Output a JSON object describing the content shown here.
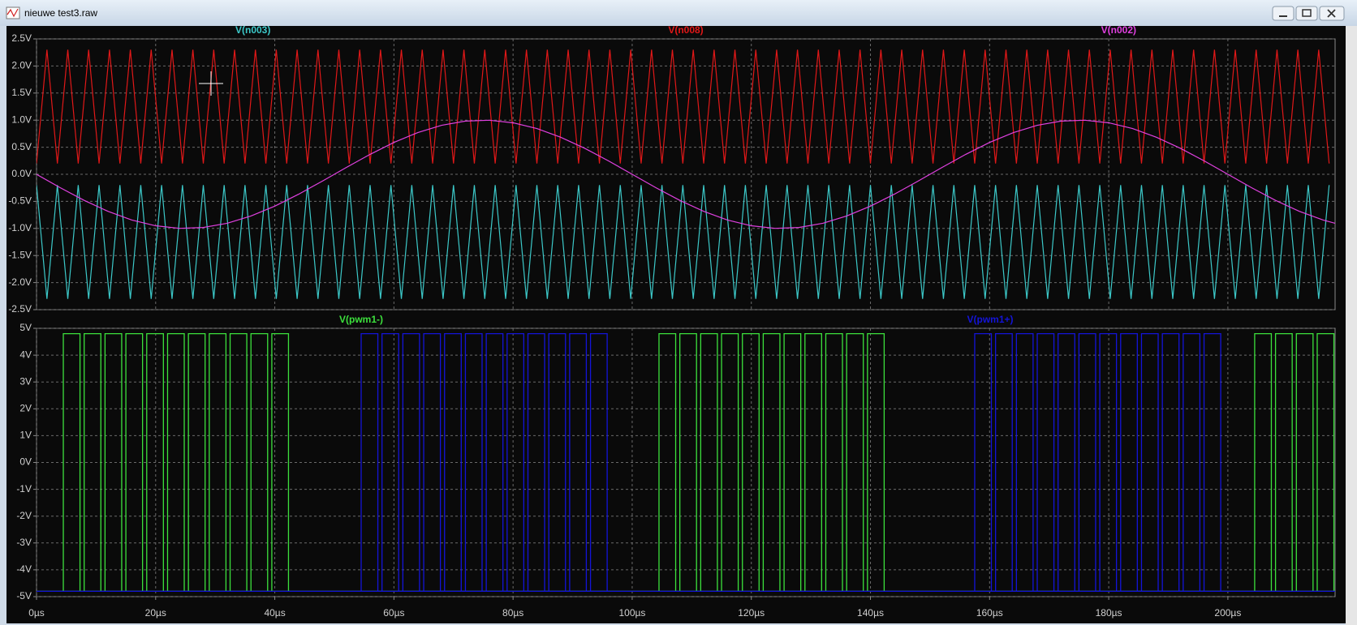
{
  "window": {
    "title": "nieuwe test3.raw"
  },
  "chart_data": [
    {
      "type": "line",
      "xlim": [
        0,
        218
      ],
      "ylim": [
        -2.5,
        2.5
      ],
      "yticks": [
        {
          "value": -2.5,
          "label": "-2.5V"
        },
        {
          "value": -2,
          "label": "-2.0V"
        },
        {
          "value": -1.5,
          "label": "-1.5V"
        },
        {
          "value": -1,
          "label": "-1.0V"
        },
        {
          "value": -0.5,
          "label": "-0.5V"
        },
        {
          "value": 0,
          "label": "0.0V"
        },
        {
          "value": 0.5,
          "label": "0.5V"
        },
        {
          "value": 1,
          "label": "1.0V"
        },
        {
          "value": 1.5,
          "label": "1.5V"
        },
        {
          "value": 2,
          "label": "2.0V"
        },
        {
          "value": 2.5,
          "label": "2.5V"
        }
      ],
      "grid": true,
      "x": [
        0,
        1.75,
        3.5,
        5.25,
        7,
        8.75,
        10.5,
        12.25,
        14,
        15.75,
        17.5,
        19.25,
        21,
        22.75,
        24.5,
        26.25,
        28,
        29.75,
        31.5,
        33.25,
        35,
        36.75,
        38.5,
        40.25,
        42,
        43.75,
        45.5,
        47.25,
        49,
        50.75,
        52.5,
        54.25,
        56,
        57.75,
        59.5,
        61.25,
        63,
        64.75,
        66.5,
        68.25,
        70,
        71.75,
        73.5,
        75.25,
        77,
        78.75,
        80.5,
        82.25,
        84,
        85.75,
        87.5,
        89.25,
        91,
        92.75,
        94.5,
        96.25,
        98,
        99.75,
        101.5,
        103.25,
        105,
        106.75,
        108.5,
        110.25,
        112,
        113.75,
        115.5,
        117.25,
        119,
        120.75,
        122.5,
        124.25,
        126,
        127.75,
        129.5,
        131.25,
        133,
        134.75,
        136.5,
        138.25,
        140,
        141.75,
        143.5,
        145.25,
        147,
        148.75,
        150.5,
        152.25,
        154,
        155.75,
        157.5,
        159.25,
        161,
        162.75,
        164.5,
        166.25,
        168,
        169.75,
        171.5,
        173.25,
        175,
        176.75,
        178.5,
        180.25,
        182,
        183.75,
        185.5,
        187.25,
        189,
        190.75,
        192.5,
        194.25,
        196,
        197.75,
        199.5,
        201.25,
        203,
        204.75,
        206.5,
        208.25,
        210,
        211.75,
        213.5,
        215.25,
        217
      ],
      "series": [
        {
          "name": "V(n003)",
          "color": "#3cc8c8",
          "values": [
            -0.2,
            -2.3,
            -0.2,
            -2.3,
            -0.2,
            -2.3,
            -0.2,
            -2.3,
            -0.2,
            -2.3,
            -0.2,
            -2.3,
            -0.2,
            -2.3,
            -0.2,
            -2.3,
            -0.2,
            -2.3,
            -0.2,
            -2.3,
            -0.2,
            -2.3,
            -0.2,
            -2.3,
            -0.2,
            -2.3,
            -0.2,
            -2.3,
            -0.2,
            -2.3,
            -0.2,
            -2.3,
            -0.2,
            -2.3,
            -0.2,
            -2.3,
            -0.2,
            -2.3,
            -0.2,
            -2.3,
            -0.2,
            -2.3,
            -0.2,
            -2.3,
            -0.2,
            -2.3,
            -0.2,
            -2.3,
            -0.2,
            -2.3,
            -0.2,
            -2.3,
            -0.2,
            -2.3,
            -0.2,
            -2.3,
            -0.2,
            -2.3,
            -0.2,
            -2.3,
            -0.2,
            -2.3,
            -0.2,
            -2.3,
            -0.2,
            -2.3,
            -0.2,
            -2.3,
            -0.2,
            -2.3,
            -0.2,
            -2.3,
            -0.2,
            -2.3,
            -0.2,
            -2.3,
            -0.2,
            -2.3,
            -0.2,
            -2.3,
            -0.2,
            -2.3,
            -0.2,
            -2.3,
            -0.2,
            -2.3,
            -0.2,
            -2.3,
            -0.2,
            -2.3,
            -0.2,
            -2.3,
            -0.2,
            -2.3,
            -0.2,
            -2.3,
            -0.2,
            -2.3,
            -0.2,
            -2.3,
            -0.2,
            -2.3,
            -0.2,
            -2.3,
            -0.2,
            -2.3,
            -0.2,
            -2.3,
            -0.2,
            -2.3,
            -0.2,
            -2.3,
            -0.2,
            -2.3,
            -0.2,
            -2.3,
            -0.2,
            -2.3,
            -0.2,
            -2.3,
            -0.2,
            -2.3,
            -0.2,
            -2.3,
            -0.2
          ]
        },
        {
          "name": "V(n008)",
          "color": "#e01818",
          "values": [
            0.2,
            2.3,
            0.2,
            2.3,
            0.2,
            2.3,
            0.2,
            2.3,
            0.2,
            2.3,
            0.2,
            2.3,
            0.2,
            2.3,
            0.2,
            2.3,
            0.2,
            2.3,
            0.2,
            2.3,
            0.2,
            2.3,
            0.2,
            2.3,
            0.2,
            2.3,
            0.2,
            2.3,
            0.2,
            2.3,
            0.2,
            2.3,
            0.2,
            2.3,
            0.2,
            2.3,
            0.2,
            2.3,
            0.2,
            2.3,
            0.2,
            2.3,
            0.2,
            2.3,
            0.2,
            2.3,
            0.2,
            2.3,
            0.2,
            2.3,
            0.2,
            2.3,
            0.2,
            2.3,
            0.2,
            2.3,
            0.2,
            2.3,
            0.2,
            2.3,
            0.2,
            2.3,
            0.2,
            2.3,
            0.2,
            2.3,
            0.2,
            2.3,
            0.2,
            2.3,
            0.2,
            2.3,
            0.2,
            2.3,
            0.2,
            2.3,
            0.2,
            2.3,
            0.2,
            2.3,
            0.2,
            2.3,
            0.2,
            2.3,
            0.2,
            2.3,
            0.2,
            2.3,
            0.2,
            2.3,
            0.2,
            2.3,
            0.2,
            2.3,
            0.2,
            2.3,
            0.2,
            2.3,
            0.2,
            2.3,
            0.2,
            2.3,
            0.2,
            2.3,
            0.2,
            2.3,
            0.2,
            2.3,
            0.2,
            2.3,
            0.2,
            2.3,
            0.2,
            2.3,
            0.2,
            2.3,
            0.2,
            2.3,
            0.2,
            2.3,
            0.2,
            2.3,
            0.2,
            2.3,
            0.2
          ]
        },
        {
          "name": "V(n002)",
          "color": "#e040e0",
          "x": [
            0,
            4,
            8,
            12,
            16,
            20,
            24,
            28,
            32,
            36,
            40,
            44,
            48,
            52,
            56,
            60,
            64,
            68,
            72,
            76,
            80,
            84,
            88,
            92,
            96,
            100,
            104,
            108,
            112,
            116,
            120,
            124,
            128,
            132,
            136,
            140,
            144,
            148,
            152,
            156,
            160,
            164,
            168,
            172,
            176,
            180,
            184,
            188,
            192,
            196,
            200,
            204,
            208,
            212,
            216,
            218
          ],
          "values": [
            0,
            -0.2487,
            -0.4818,
            -0.6845,
            -0.8443,
            -0.9511,
            -0.998,
            -0.9823,
            -0.9048,
            -0.7705,
            -0.5878,
            -0.3681,
            -0.1253,
            0.1253,
            0.3681,
            0.5878,
            0.7705,
            0.9048,
            0.9823,
            0.998,
            0.9511,
            0.8443,
            0.6845,
            0.4818,
            0.2487,
            0,
            -0.2487,
            -0.4818,
            -0.6845,
            -0.8443,
            -0.9511,
            -0.998,
            -0.9823,
            -0.9048,
            -0.7705,
            -0.5878,
            -0.3681,
            -0.1253,
            0.1253,
            0.3681,
            0.5878,
            0.7705,
            0.9048,
            0.9823,
            0.998,
            0.9511,
            0.8443,
            0.6845,
            0.4818,
            0.2487,
            0,
            -0.2487,
            -0.4818,
            -0.6845,
            -0.8443,
            -0.9048
          ]
        }
      ]
    },
    {
      "type": "line",
      "xlim": [
        0,
        218
      ],
      "ylim": [
        -5,
        5
      ],
      "xticks": [
        {
          "value": 0,
          "label": "0µs"
        },
        {
          "value": 20,
          "label": "20µs"
        },
        {
          "value": 40,
          "label": "40µs"
        },
        {
          "value": 60,
          "label": "60µs"
        },
        {
          "value": 80,
          "label": "80µs"
        },
        {
          "value": 100,
          "label": "100µs"
        },
        {
          "value": 120,
          "label": "120µs"
        },
        {
          "value": 140,
          "label": "140µs"
        },
        {
          "value": 160,
          "label": "160µs"
        },
        {
          "value": 180,
          "label": "180µs"
        },
        {
          "value": 200,
          "label": "200µs"
        }
      ],
      "yticks": [
        {
          "value": -5,
          "label": "-5V"
        },
        {
          "value": -4,
          "label": "-4V"
        },
        {
          "value": -3,
          "label": "-3V"
        },
        {
          "value": -2,
          "label": "-2V"
        },
        {
          "value": -1,
          "label": "-1V"
        },
        {
          "value": 0,
          "label": "0V"
        },
        {
          "value": 1,
          "label": "1V"
        },
        {
          "value": 2,
          "label": "2V"
        },
        {
          "value": 3,
          "label": "3V"
        },
        {
          "value": 4,
          "label": "4V"
        },
        {
          "value": 5,
          "label": "5V"
        }
      ],
      "grid": true,
      "series": [
        {
          "name": "V(pwm1-)",
          "color": "#3ce03c",
          "high": 4.8,
          "low": -4.8,
          "pulses": [
            [
              4.5,
              7.3
            ],
            [
              8,
              10.8
            ],
            [
              11.5,
              14.3
            ],
            [
              15,
              17.8
            ],
            [
              18.5,
              21.3
            ],
            [
              22,
              24.8
            ],
            [
              25.5,
              28.3
            ],
            [
              29,
              31.8
            ],
            [
              32.5,
              35.3
            ],
            [
              36,
              38.8
            ],
            [
              39.5,
              42.3
            ],
            [
              104.5,
              107.3
            ],
            [
              108,
              110.8
            ],
            [
              111.5,
              114.3
            ],
            [
              115,
              117.8
            ],
            [
              118.5,
              121.3
            ],
            [
              122,
              124.8
            ],
            [
              125.5,
              128.3
            ],
            [
              129,
              131.8
            ],
            [
              132.5,
              135.3
            ],
            [
              136,
              138.8
            ],
            [
              139.5,
              142.3
            ],
            [
              204.5,
              207.3
            ],
            [
              208,
              210.8
            ],
            [
              211.5,
              214.3
            ],
            [
              215,
              217.8
            ]
          ]
        },
        {
          "name": "V(pwm1+)",
          "color": "#1414d8",
          "high": 4.8,
          "low": -4.8,
          "pulses": [
            [
              54.5,
              57.3
            ],
            [
              58,
              60.8
            ],
            [
              61.5,
              64.3
            ],
            [
              65,
              67.8
            ],
            [
              68.5,
              71.3
            ],
            [
              72,
              74.8
            ],
            [
              75.5,
              78.3
            ],
            [
              79,
              81.8
            ],
            [
              82.5,
              85.3
            ],
            [
              86,
              88.8
            ],
            [
              89.5,
              92.3
            ],
            [
              93,
              95.8
            ],
            [
              157.5,
              160.3
            ],
            [
              161,
              163.8
            ],
            [
              164.5,
              167.3
            ],
            [
              168,
              170.8
            ],
            [
              171.5,
              174.3
            ],
            [
              175,
              177.8
            ],
            [
              178.5,
              181.3
            ],
            [
              182,
              184.8
            ],
            [
              185.5,
              188.3
            ],
            [
              189,
              191.8
            ],
            [
              192.5,
              195.3
            ],
            [
              196,
              198.8
            ]
          ]
        }
      ]
    }
  ]
}
